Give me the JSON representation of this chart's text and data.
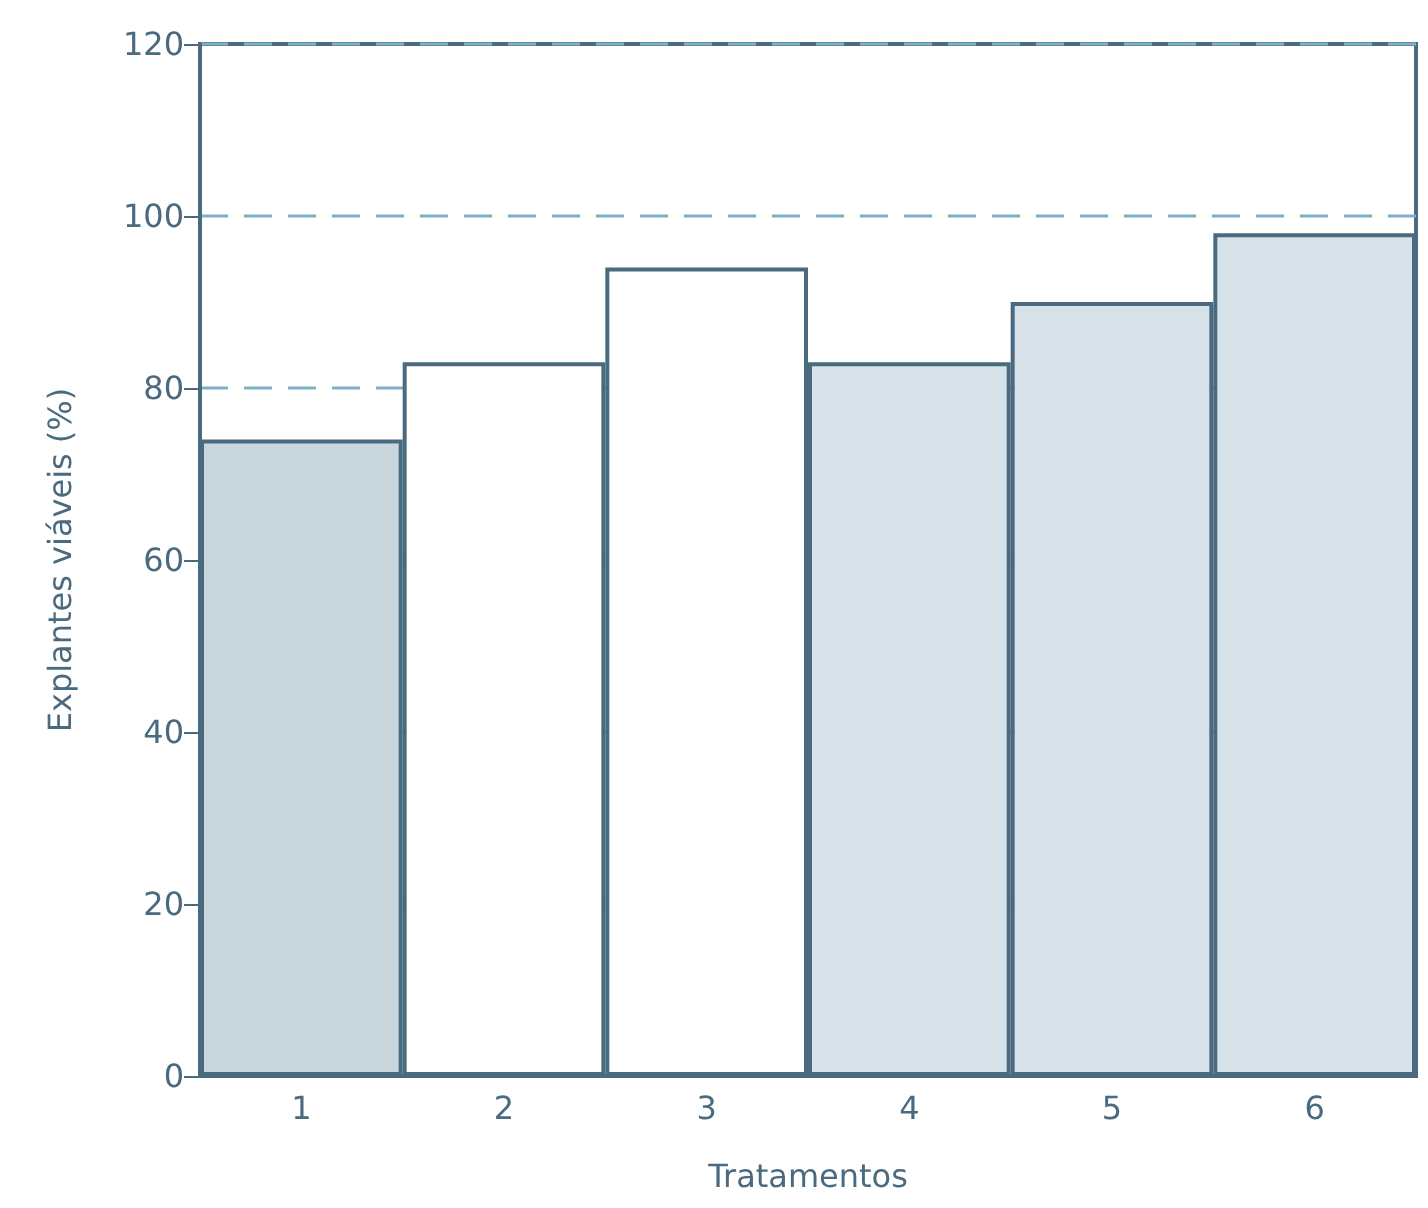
{
  "chart_data": {
    "type": "bar",
    "xlabel": "Tratamentos",
    "ylabel": "Explantes viáveis (%)",
    "categories": [
      "1",
      "2",
      "3",
      "4",
      "5",
      "6"
    ],
    "values": [
      74,
      83,
      94,
      83,
      90,
      98
    ],
    "colors": [
      "#c9d6de",
      "#ffffff",
      "#ffffff",
      "#d6e2e8",
      "#d6e2e8",
      "#d6e2e8"
    ],
    "ylim": [
      0,
      120
    ],
    "yticks": [
      0,
      20,
      40,
      60,
      80,
      100,
      120
    ],
    "grid": "y"
  }
}
